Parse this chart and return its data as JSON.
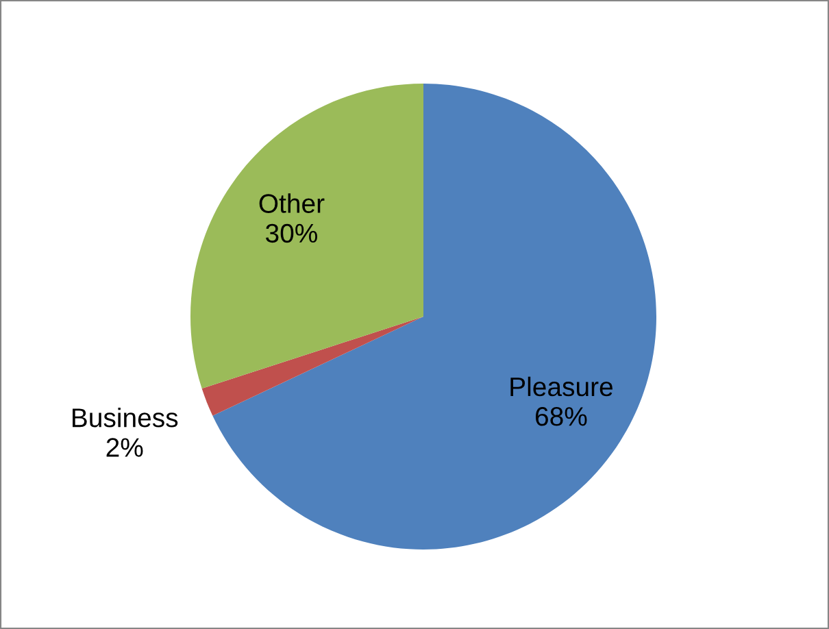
{
  "chart_data": {
    "type": "pie",
    "categories": [
      "Pleasure",
      "Business",
      "Other"
    ],
    "values": [
      68,
      2,
      30
    ],
    "colors": [
      "#4f81bd",
      "#c0504d",
      "#9bbb59"
    ],
    "value_labels": [
      "68%",
      "2%",
      "30%"
    ]
  }
}
